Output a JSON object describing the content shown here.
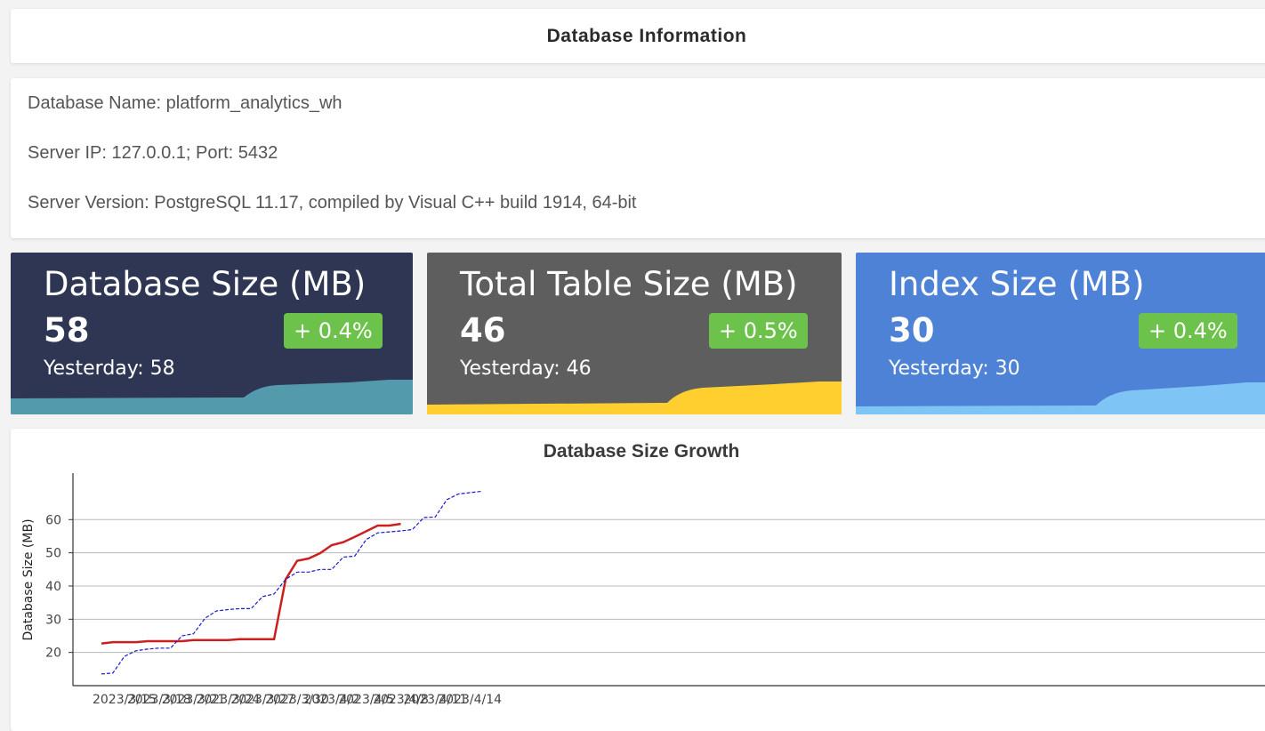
{
  "header": {
    "title": "Database Information"
  },
  "info": {
    "db_name": "Database Name: platform_analytics_wh",
    "server": "Server IP: 127.0.0.1; Port: 5432",
    "version": "Server Version: PostgreSQL 11.17, compiled by Visual C++ build 1914, 64-bit"
  },
  "cards": [
    {
      "title": "Database Size (MB)",
      "value": "58",
      "change": "+ 0.4%",
      "yesterday": "Yesterday: 58",
      "bg": "#2e3653",
      "wave": "#539bac"
    },
    {
      "title": "Total Table Size (MB)",
      "value": "46",
      "change": "+ 0.5%",
      "yesterday": "Yesterday: 46",
      "bg": "#5e5e5e",
      "wave": "#fecf2f"
    },
    {
      "title": "Index Size (MB)",
      "value": "30",
      "change": "+ 0.4%",
      "yesterday": "Yesterday: 30",
      "bg": "#4d82d6",
      "wave": "#7ec4f5"
    }
  ],
  "chart_data": {
    "type": "line",
    "title": "Database Size Growth",
    "ylabel": "Database Size (MB)",
    "xlabel": "",
    "ylim": [
      10,
      74
    ],
    "y_ticks": [
      20,
      30,
      40,
      50,
      60
    ],
    "x_ticks": [
      "2023/3/15",
      "2023/3/18",
      "2023/3/21",
      "2023/3/24",
      "2023/3/27",
      "2023/3/30",
      "2023/4/2",
      "2023/4/5",
      "2023/4/8",
      "2023/4/11",
      "2023/4/14"
    ],
    "grid": true,
    "series": [
      {
        "color": "#cc1f1f",
        "style": "solid",
        "values": [
          22.7,
          23.1,
          23.1,
          23.1,
          23.4,
          23.4,
          23.4,
          23.4,
          23.7,
          23.7,
          23.7,
          23.7,
          24.0,
          24.0,
          24.0,
          24.0,
          42.0,
          47.6,
          48.3,
          49.9,
          52.3,
          53.2,
          54.8,
          56.5,
          58.2,
          58.2,
          58.7
        ]
      },
      {
        "color": "#1a1acc",
        "style": "dashed",
        "values": [
          13.5,
          13.8,
          18.8,
          20.5,
          21.0,
          21.3,
          21.3,
          25.0,
          25.6,
          30.3,
          32.5,
          32.9,
          33.2,
          33.2,
          36.8,
          37.6,
          42.0,
          44.2,
          44.2,
          45.0,
          45.0,
          48.7,
          49.0,
          54.0,
          56.0,
          56.3,
          56.6,
          57.0,
          60.6,
          60.8,
          66.0,
          67.7,
          68.1,
          68.5
        ]
      }
    ]
  }
}
